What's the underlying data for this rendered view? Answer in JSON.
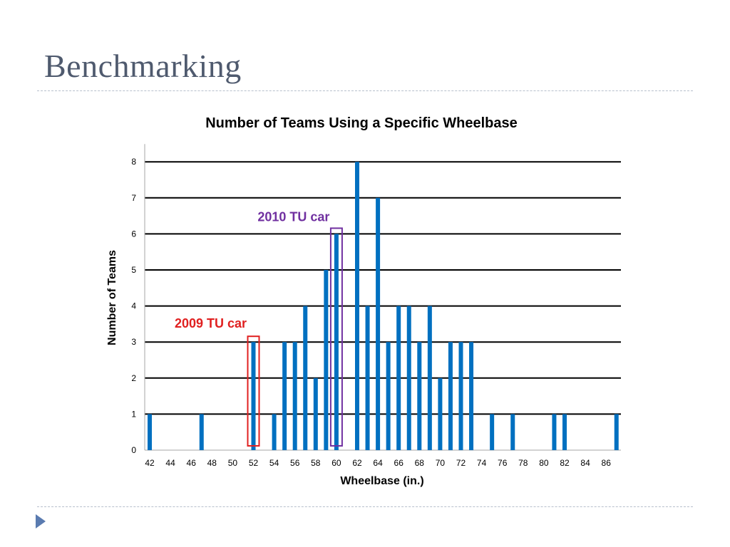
{
  "slide": {
    "title": "Benchmarking"
  },
  "chart_data": {
    "type": "bar",
    "title": "Number of Teams Using a Specific Wheelbase",
    "xlabel": "Wheelbase (in.)",
    "ylabel": "Number of Teams",
    "x": [
      42,
      43,
      44,
      45,
      46,
      47,
      48,
      49,
      50,
      51,
      52,
      53,
      54,
      55,
      56,
      57,
      58,
      59,
      60,
      61,
      62,
      63,
      64,
      65,
      66,
      67,
      68,
      69,
      70,
      71,
      72,
      73,
      74,
      75,
      76,
      77,
      78,
      79,
      80,
      81,
      82,
      83,
      84,
      85,
      86,
      87
    ],
    "values": [
      1,
      0,
      0,
      0,
      0,
      1,
      0,
      0,
      0,
      0,
      3,
      0,
      1,
      3,
      3,
      4,
      2,
      5,
      6,
      0,
      8,
      4,
      7,
      3,
      4,
      4,
      3,
      4,
      2,
      3,
      3,
      3,
      0,
      1,
      0,
      1,
      0,
      0,
      0,
      1,
      1,
      0,
      0,
      0,
      0,
      1
    ],
    "x_tick_labels": [
      "42",
      "44",
      "46",
      "48",
      "50",
      "52",
      "54",
      "56",
      "58",
      "60",
      "62",
      "64",
      "66",
      "68",
      "70",
      "72",
      "74",
      "76",
      "78",
      "80",
      "82",
      "84",
      "86"
    ],
    "y_tick_labels": [
      "0",
      "1",
      "2",
      "3",
      "4",
      "5",
      "6",
      "7",
      "8"
    ],
    "ylim": [
      0,
      8
    ],
    "grid": true,
    "bar_color": "#0070c0",
    "annotations": [
      {
        "text": "2010 TU car",
        "x": 60,
        "color": "#7030a0"
      },
      {
        "text": "2009 TU car",
        "x": 52,
        "color": "#e02020"
      }
    ]
  }
}
